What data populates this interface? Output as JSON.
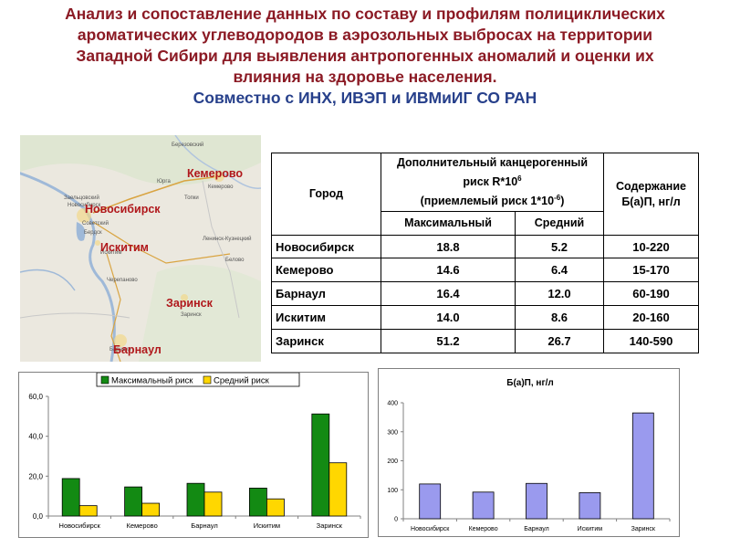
{
  "title": {
    "line1": "Анализ и сопоставление данных по составу и профилям полициклических",
    "line2": "ароматических углеводородов в аэрозольных выбросах на территории",
    "line3": "Западной Сибири для выявления антропогенных аномалий и оценки их",
    "line4": "влияния на здоровье населения.",
    "subtitle": "Совместно с ИНХ, ИВЭП и ИВМиИГ СО РАН"
  },
  "map": {
    "labels": [
      "Кемерово",
      "Новосибирск",
      "Искитим",
      "Заринск",
      "Барнаул"
    ],
    "small_labels": [
      "Березовский",
      "Кемерово",
      "Юрга",
      "Топки",
      "Новосибирск",
      "Заельцовский",
      "Советский",
      "Бердск",
      "Искитим",
      "Ленинск-Кузнецкий",
      "Белово",
      "Черепаново",
      "Заринск",
      "Барнаул"
    ]
  },
  "table": {
    "headers": {
      "city": "Город",
      "risk_main": "Дополнительный канцерогенный риск R*10",
      "risk_exp": "6",
      "risk_accept": "(приемлемый риск 1*10",
      "risk_accept_exp": "-6",
      "risk_accept_close": ")",
      "bap_line1": "Содержание",
      "bap_line2": "Б(а)П, нг/л",
      "max": "Максимальный",
      "avg": "Средний"
    },
    "rows": [
      {
        "city": "Новосибирск",
        "max": "18.8",
        "avg": "5.2",
        "bap": "10-220"
      },
      {
        "city": "Кемерово",
        "max": "14.6",
        "avg": "6.4",
        "bap": "15-170"
      },
      {
        "city": "Барнаул",
        "max": "16.4",
        "avg": "12.0",
        "bap": "60-190"
      },
      {
        "city": "Искитим",
        "max": "14.0",
        "avg": "8.6",
        "bap": "20-160"
      },
      {
        "city": "Заринск",
        "max": "51.2",
        "avg": "26.7",
        "bap": "140-590"
      }
    ]
  },
  "colors": {
    "title": "#8b1a24",
    "subtitle": "#27408b",
    "city_label": "#b0171b",
    "series_max": "#138a13",
    "series_avg": "#ffd700",
    "series_bap": "#9a9aee"
  },
  "chart_data": [
    {
      "type": "bar",
      "categories": [
        "Новосибирск",
        "Кемерово",
        "Барнаул",
        "Искитим",
        "Заринск"
      ],
      "series": [
        {
          "name": "Максимальный риск",
          "values": [
            18.8,
            14.6,
            16.4,
            14.0,
            51.2
          ]
        },
        {
          "name": "Средний риск",
          "values": [
            5.2,
            6.4,
            12.0,
            8.6,
            26.7
          ]
        }
      ],
      "ylim": [
        0,
        60
      ],
      "yticks": [
        "0,0",
        "20,0",
        "40,0",
        "60,0"
      ],
      "legend": "top",
      "grid": false
    },
    {
      "type": "bar",
      "title": "Б(а)П, нг/л",
      "categories": [
        "Новосибирск",
        "Кемерово",
        "Барнаул",
        "Искитим",
        "Заринск"
      ],
      "series": [
        {
          "values": [
            120,
            92,
            122,
            90,
            365
          ]
        }
      ],
      "ylim": [
        0,
        400
      ],
      "yticks": [
        "0",
        "100",
        "200",
        "300",
        "400"
      ],
      "grid": false
    }
  ]
}
